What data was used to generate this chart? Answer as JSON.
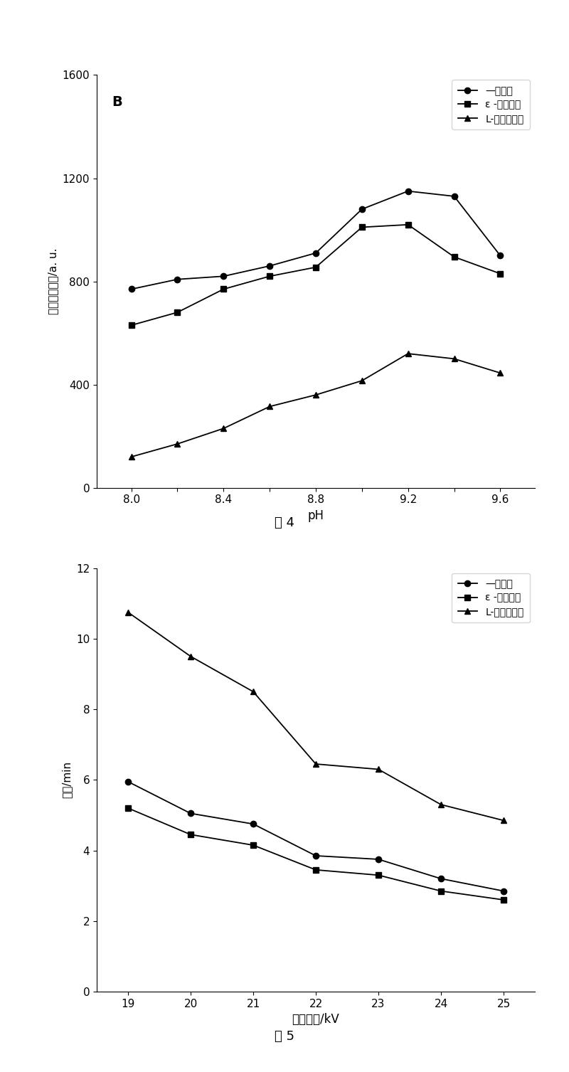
{
  "fig4": {
    "title_label": "B",
    "xlabel": "pH",
    "ylabel_parts": [
      "相对荧光强度/a. u."
    ],
    "caption": "图 4",
    "xlim": [
      7.85,
      9.75
    ],
    "ylim": [
      0,
      1600
    ],
    "xticks": [
      8.0,
      8.2,
      8.4,
      8.6,
      8.8,
      9.0,
      9.2,
      9.4,
      9.6
    ],
    "xtick_labels": [
      "8.0",
      "",
      "8.4",
      "",
      "8.8",
      "",
      "9.2",
      "",
      "9.6"
    ],
    "yticks": [
      0,
      400,
      800,
      1200,
      1600
    ],
    "series": [
      {
        "label": "—牛磺酸",
        "marker": "o",
        "x": [
          8.0,
          8.2,
          8.4,
          8.6,
          8.8,
          9.0,
          9.2,
          9.4,
          9.6
        ],
        "y": [
          770,
          808,
          820,
          860,
          910,
          1080,
          1150,
          1130,
          900
        ]
      },
      {
        "label": "ε -氨基己酸",
        "marker": "s",
        "x": [
          8.0,
          8.2,
          8.4,
          8.6,
          8.8,
          9.0,
          9.2,
          9.4,
          9.6
        ],
        "y": [
          630,
          680,
          770,
          820,
          855,
          1010,
          1020,
          895,
          830
        ]
      },
      {
        "label": "L-天门冬氨酸",
        "marker": "^",
        "x": [
          8.0,
          8.2,
          8.4,
          8.6,
          8.8,
          9.0,
          9.2,
          9.4,
          9.6
        ],
        "y": [
          120,
          170,
          230,
          315,
          360,
          415,
          520,
          500,
          445
        ]
      }
    ]
  },
  "fig5": {
    "xlabel": "分离电压/kV",
    "ylabel": "时间/min",
    "caption": "图 5",
    "xlim": [
      18.5,
      25.5
    ],
    "ylim": [
      0,
      12
    ],
    "xticks": [
      19,
      20,
      21,
      22,
      23,
      24,
      25
    ],
    "yticks": [
      0,
      2,
      4,
      6,
      8,
      10,
      12
    ],
    "series": [
      {
        "label": "—牛磺酸",
        "marker": "o",
        "x": [
          19,
          20,
          21,
          22,
          23,
          24,
          25
        ],
        "y": [
          5.95,
          5.05,
          4.75,
          3.85,
          3.75,
          3.2,
          2.85
        ]
      },
      {
        "label": "ε -氨基己酸",
        "marker": "s",
        "x": [
          19,
          20,
          21,
          22,
          23,
          24,
          25
        ],
        "y": [
          5.2,
          4.45,
          4.15,
          3.45,
          3.3,
          2.85,
          2.6
        ]
      },
      {
        "label": "L-天门冬氨酸",
        "marker": "^",
        "x": [
          19,
          20,
          21,
          22,
          23,
          24,
          25
        ],
        "y": [
          10.75,
          9.5,
          8.5,
          6.45,
          6.3,
          5.3,
          4.85
        ]
      }
    ]
  }
}
